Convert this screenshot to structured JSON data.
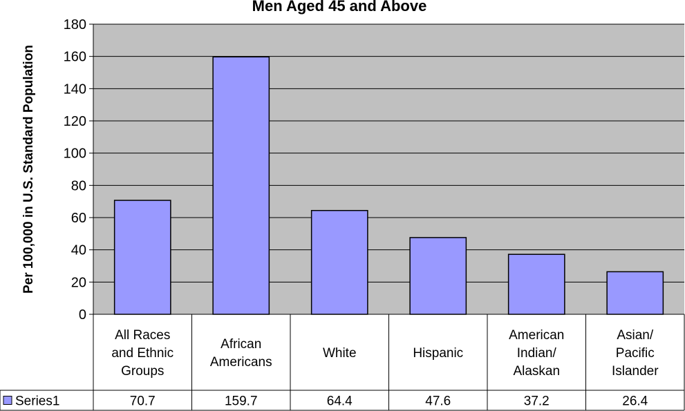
{
  "chart_data": {
    "type": "table",
    "chart_kind": "bar",
    "title": "Men Aged 45 and Above",
    "ylabel": "Per 100,000 in U.S. Standard Population",
    "xlabel": "",
    "ylim": [
      0,
      180
    ],
    "yticks": [
      0,
      20,
      40,
      60,
      80,
      100,
      120,
      140,
      160,
      180
    ],
    "grid": true,
    "categories": [
      [
        "All Races",
        "and Ethnic",
        "Groups"
      ],
      [
        "African",
        "Americans"
      ],
      [
        "White"
      ],
      [
        "Hispanic"
      ],
      [
        "American",
        "Indian/",
        "Alaskan"
      ],
      [
        "Asian/",
        "Pacific",
        "Islander"
      ]
    ],
    "series": [
      {
        "name": "Series1",
        "values": [
          70.7,
          159.7,
          64.4,
          47.6,
          37.2,
          26.4
        ],
        "value_labels": [
          "70.7",
          "159.7",
          "64.4",
          "47.6",
          "37.2",
          "26.4"
        ]
      }
    ],
    "colors": {
      "plot_background": "#c0c0c0",
      "bar_fill": "#9999ff",
      "bar_stroke": "#000000",
      "gridline": "#000000"
    }
  }
}
